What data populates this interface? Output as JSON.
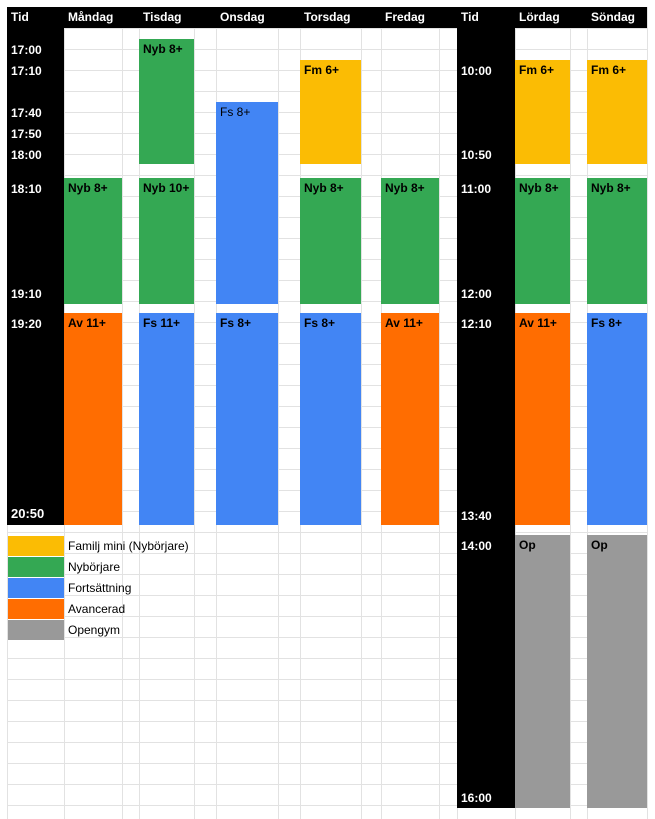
{
  "colors": {
    "familj_mini": "#fbbc04",
    "nyborjare": "#34a853",
    "fortsattning": "#4285f4",
    "avancerad": "#ff6d01",
    "opengym": "#999999",
    "header_bg": "#000000",
    "grid_line": "#e2e2e2"
  },
  "headers": {
    "tid_weekday": "Tid",
    "mandag": "Måndag",
    "tisdag": "Tisdag",
    "onsdag": "Onsdag",
    "torsdag": "Torsdag",
    "fredag": "Fredag",
    "tid_weekend": "Tid",
    "lordag": "Lördag",
    "sondag": "Söndag"
  },
  "weekday_times": [
    "17:00",
    "17:10",
    "17:40",
    "17:50",
    "18:00",
    "18:10",
    "19:10",
    "19:20",
    "20:50"
  ],
  "weekend_times": [
    "10:00",
    "10:50",
    "11:00",
    "12:00",
    "12:10",
    "13:40",
    "14:00",
    "16:00"
  ],
  "blocks": {
    "tis_nyb": "Nyb 8+",
    "tor_fm": "Fm 6+",
    "ons_fs1": "Fs 8+",
    "man_nyb": "Nyb 8+",
    "tis_nyb10": "Nyb 10+",
    "tor_nyb": "Nyb 8+",
    "fre_nyb": "Nyb 8+",
    "man_av": "Av 11+",
    "tis_fs": "Fs 11+",
    "ons_fs2": "Fs 8+",
    "tor_fs": "Fs 8+",
    "fre_av": "Av 11+",
    "lor_fm": "Fm 6+",
    "son_fm": "Fm 6+",
    "lor_nyb": "Nyb 8+",
    "son_nyb": "Nyb 8+",
    "lor_av": "Av 11+",
    "son_fs": "Fs 8+",
    "lor_op": "Op",
    "son_op": "Op"
  },
  "legend": {
    "familj_mini": "Familj mini (Nybörjare)",
    "nyborjare": "Nybörjare",
    "fortsattning": "Fortsättning",
    "avancerad": "Avancerad",
    "opengym": "Opengym"
  }
}
